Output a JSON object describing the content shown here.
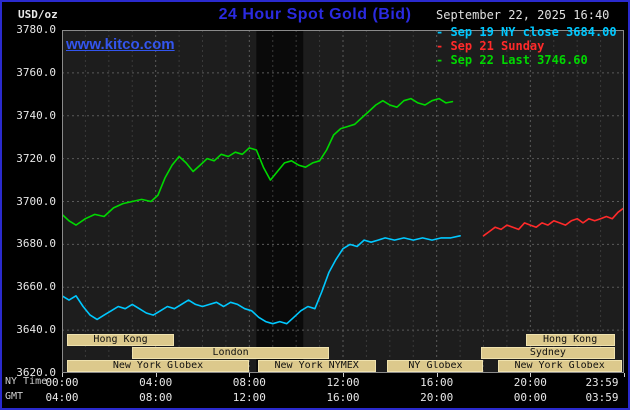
{
  "header": {
    "units": "USD/oz",
    "title": "24 Hour Spot Gold (Bid)",
    "datetime": "September 22, 2025 16:40"
  },
  "watermark": {
    "text": "www.kitco.com"
  },
  "legend": {
    "items": [
      {
        "bullet": "-",
        "label": "Sep 19 NY close 3684.00",
        "color": "#00c8ff"
      },
      {
        "bullet": "-",
        "label": "Sep 21 Sunday",
        "color": "#ff2a2a"
      },
      {
        "bullet": "-",
        "label": "Sep 22 Last 3746.60",
        "color": "#00d800"
      }
    ]
  },
  "axes": {
    "ny_label": "NY Time",
    "gmt_label": "GMT",
    "y_ticks": [
      {
        "v": 3780,
        "label": "3780.0"
      },
      {
        "v": 3760,
        "label": "3760.0"
      },
      {
        "v": 3740,
        "label": "3740.0"
      },
      {
        "v": 3720,
        "label": "3720.0"
      },
      {
        "v": 3700,
        "label": "3700.0"
      },
      {
        "v": 3680,
        "label": "3680.0"
      },
      {
        "v": 3660,
        "label": "3660.0"
      },
      {
        "v": 3640,
        "label": "3640.0"
      },
      {
        "v": 3620,
        "label": "3620.0"
      }
    ],
    "x_ticks": [
      {
        "h": 0,
        "ny": "00:00",
        "gmt": "04:00"
      },
      {
        "h": 4,
        "ny": "04:00",
        "gmt": "08:00"
      },
      {
        "h": 8,
        "ny": "08:00",
        "gmt": "12:00"
      },
      {
        "h": 12,
        "ny": "12:00",
        "gmt": "16:00"
      },
      {
        "h": 16,
        "ny": "16:00",
        "gmt": "20:00"
      },
      {
        "h": 20,
        "ny": "20:00",
        "gmt": "00:00"
      },
      {
        "h": 24,
        "ny": "23:59",
        "gmt": "03:59"
      }
    ]
  },
  "sessions": {
    "box_fill": "#dcc98c",
    "box_border": "#efe2ae",
    "rows": [
      {
        "row": 0,
        "label": "Hong Kong",
        "start_h": 0.2,
        "end_h": 4.8
      },
      {
        "row": 0,
        "label": "Hong Kong",
        "start_h": 19.8,
        "end_h": 23.6
      },
      {
        "row": 1,
        "label": "London",
        "start_h": 3.0,
        "end_h": 11.4
      },
      {
        "row": 1,
        "label": "Sydney",
        "start_h": 17.9,
        "end_h": 23.6
      },
      {
        "row": 2,
        "label": "New York Globex",
        "start_h": 0.2,
        "end_h": 8.0
      },
      {
        "row": 2,
        "label": "New York NYMEX",
        "start_h": 8.35,
        "end_h": 13.4
      },
      {
        "row": 2,
        "label": "NY Globex",
        "start_h": 13.9,
        "end_h": 18.0
      },
      {
        "row": 2,
        "label": "New York Globex",
        "start_h": 18.6,
        "end_h": 23.9
      }
    ]
  },
  "chart_data": {
    "type": "line",
    "title": "24 Hour Spot Gold (Bid)",
    "x_unit": "hours (NY Time)",
    "ylabel": "USD/oz",
    "xlim": [
      0,
      24
    ],
    "ylim": [
      3620,
      3780
    ],
    "y_grid_step": 20,
    "x_grid_minor_step": 1,
    "x_grid_major_step": 4,
    "plot_bg": "#1d1d1d",
    "grid_on": true,
    "legend_position": "top-right",
    "last_price": 3746.6,
    "prev_close": 3684.0,
    "bands": [
      {
        "start": 8.3,
        "end": 10.3,
        "color": "#0a0a0a"
      }
    ],
    "series": [
      {
        "name": "Sep 19 NY close",
        "color": "#00c8ff",
        "points": [
          [
            0,
            3656
          ],
          [
            0.3,
            3654
          ],
          [
            0.6,
            3656
          ],
          [
            0.9,
            3651
          ],
          [
            1.2,
            3647
          ],
          [
            1.5,
            3645
          ],
          [
            1.8,
            3647
          ],
          [
            2.1,
            3649
          ],
          [
            2.4,
            3651
          ],
          [
            2.7,
            3650
          ],
          [
            3,
            3652
          ],
          [
            3.3,
            3650
          ],
          [
            3.6,
            3648
          ],
          [
            3.9,
            3647
          ],
          [
            4.2,
            3649
          ],
          [
            4.5,
            3651
          ],
          [
            4.8,
            3650
          ],
          [
            5.1,
            3652
          ],
          [
            5.4,
            3654
          ],
          [
            5.7,
            3652
          ],
          [
            6,
            3651
          ],
          [
            6.3,
            3652
          ],
          [
            6.6,
            3653
          ],
          [
            6.9,
            3651
          ],
          [
            7.2,
            3653
          ],
          [
            7.5,
            3652
          ],
          [
            7.8,
            3650
          ],
          [
            8.1,
            3649
          ],
          [
            8.4,
            3646
          ],
          [
            8.7,
            3644
          ],
          [
            9,
            3643
          ],
          [
            9.3,
            3644
          ],
          [
            9.6,
            3643
          ],
          [
            9.9,
            3646
          ],
          [
            10.2,
            3649
          ],
          [
            10.5,
            3651
          ],
          [
            10.8,
            3650
          ],
          [
            11.1,
            3658
          ],
          [
            11.4,
            3667
          ],
          [
            11.7,
            3673
          ],
          [
            12,
            3678
          ],
          [
            12.3,
            3680
          ],
          [
            12.6,
            3679
          ],
          [
            12.9,
            3682
          ],
          [
            13.2,
            3681
          ],
          [
            13.5,
            3682
          ],
          [
            13.8,
            3683
          ],
          [
            14.2,
            3682
          ],
          [
            14.6,
            3683
          ],
          [
            15,
            3682
          ],
          [
            15.4,
            3683
          ],
          [
            15.8,
            3682
          ],
          [
            16.2,
            3683
          ],
          [
            16.6,
            3683
          ],
          [
            17,
            3684
          ]
        ]
      },
      {
        "name": "Sep 21 Sunday",
        "color": "#ff2a2a",
        "points": [
          [
            18,
            3684
          ],
          [
            18.25,
            3686
          ],
          [
            18.5,
            3688
          ],
          [
            18.75,
            3687
          ],
          [
            19,
            3689
          ],
          [
            19.25,
            3688
          ],
          [
            19.5,
            3687
          ],
          [
            19.75,
            3690
          ],
          [
            20,
            3689
          ],
          [
            20.25,
            3688
          ],
          [
            20.5,
            3690
          ],
          [
            20.75,
            3689
          ],
          [
            21,
            3691
          ],
          [
            21.25,
            3690
          ],
          [
            21.5,
            3689
          ],
          [
            21.75,
            3691
          ],
          [
            22,
            3692
          ],
          [
            22.25,
            3690
          ],
          [
            22.5,
            3692
          ],
          [
            22.75,
            3691
          ],
          [
            23,
            3692
          ],
          [
            23.25,
            3693
          ],
          [
            23.5,
            3692
          ],
          [
            23.75,
            3695
          ],
          [
            24,
            3697
          ]
        ]
      },
      {
        "name": "Sep 22 Last",
        "color": "#00d800",
        "points": [
          [
            0,
            3694
          ],
          [
            0.3,
            3691
          ],
          [
            0.6,
            3689
          ],
          [
            1,
            3692
          ],
          [
            1.4,
            3694
          ],
          [
            1.8,
            3693
          ],
          [
            2.2,
            3697
          ],
          [
            2.6,
            3699
          ],
          [
            3,
            3700
          ],
          [
            3.4,
            3701
          ],
          [
            3.8,
            3700
          ],
          [
            4.1,
            3703
          ],
          [
            4.4,
            3711
          ],
          [
            4.7,
            3717
          ],
          [
            5,
            3721
          ],
          [
            5.3,
            3718
          ],
          [
            5.6,
            3714
          ],
          [
            5.9,
            3717
          ],
          [
            6.2,
            3720
          ],
          [
            6.5,
            3719
          ],
          [
            6.8,
            3722
          ],
          [
            7.1,
            3721
          ],
          [
            7.4,
            3723
          ],
          [
            7.7,
            3722
          ],
          [
            8,
            3725
          ],
          [
            8.3,
            3724
          ],
          [
            8.6,
            3716
          ],
          [
            8.9,
            3710
          ],
          [
            9.2,
            3714
          ],
          [
            9.5,
            3718
          ],
          [
            9.8,
            3719
          ],
          [
            10.1,
            3717
          ],
          [
            10.4,
            3716
          ],
          [
            10.7,
            3718
          ],
          [
            11,
            3719
          ],
          [
            11.3,
            3724
          ],
          [
            11.6,
            3731
          ],
          [
            11.9,
            3734
          ],
          [
            12.2,
            3735
          ],
          [
            12.5,
            3736
          ],
          [
            12.8,
            3739
          ],
          [
            13.1,
            3742
          ],
          [
            13.4,
            3745
          ],
          [
            13.7,
            3747
          ],
          [
            14,
            3745
          ],
          [
            14.3,
            3744
          ],
          [
            14.6,
            3747
          ],
          [
            14.9,
            3748
          ],
          [
            15.2,
            3746
          ],
          [
            15.5,
            3745
          ],
          [
            15.8,
            3747
          ],
          [
            16.1,
            3748
          ],
          [
            16.4,
            3746
          ],
          [
            16.67,
            3746.6
          ]
        ]
      }
    ]
  }
}
